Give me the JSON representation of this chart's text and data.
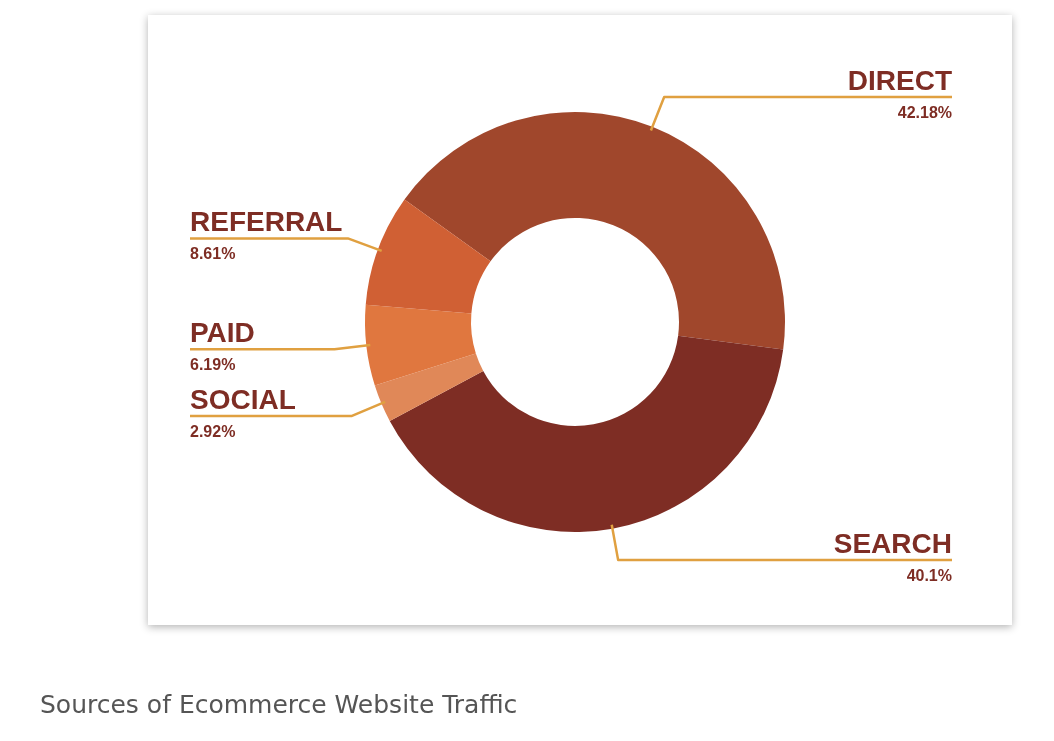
{
  "chart_data": {
    "type": "donut",
    "categories": [
      "DIRECT",
      "SEARCH",
      "SOCIAL",
      "PAID",
      "REFERRAL"
    ],
    "values": [
      42.18,
      40.1,
      2.92,
      6.19,
      8.61
    ],
    "colors": [
      "#a0472c",
      "#7e2d24",
      "#e08858",
      "#e0773f",
      "#d06034"
    ],
    "value_labels": [
      "42.18%",
      "40.1%",
      "2.92%",
      "6.19%",
      "8.61%"
    ],
    "annotations": [
      "Sources of Ecommerce Website Traffic"
    ]
  }
}
